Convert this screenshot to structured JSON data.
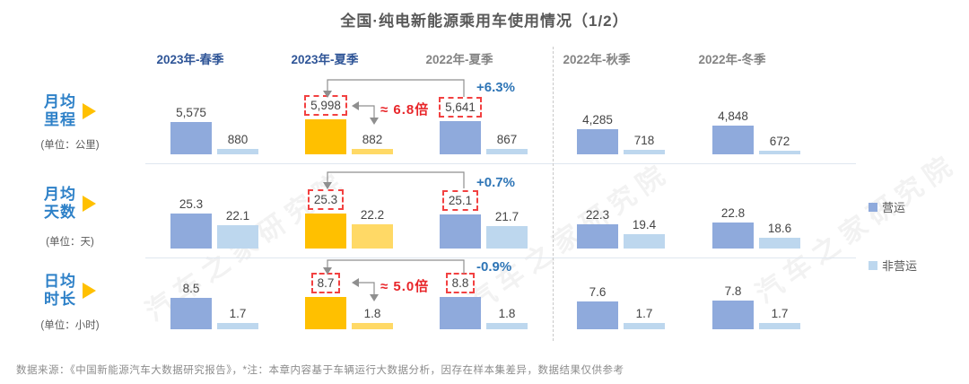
{
  "title": "全国·纯电新能源乘用车使用情况（1/2）",
  "watermark": "汽车之家研究院",
  "footer": "数据来源：《中国新能源汽车大数据研究报告》，*注：本章内容基于车辆运行大数据分析，因存在样本集差异，数据结果仅供参考",
  "colors": {
    "operating_bar": "#8FAADC",
    "non_operating_bar": "#BDD7EE",
    "highlight_operating_bar": "#FFC000",
    "highlight_non_operating_bar": "#FFD966",
    "accent_blue_text": "#2E75B6",
    "accent_red_text": "#E8262A",
    "header_active": "#2F5597",
    "header_inactive": "#848484",
    "row_label_blue": "#2E81C8",
    "triangle_yellow": "#FFC000"
  },
  "legend": [
    {
      "label": "营运",
      "color": "#8FAADC"
    },
    {
      "label": "非营运",
      "color": "#BDD7EE"
    }
  ],
  "chart_data": {
    "type": "bar",
    "categories": [
      "2023年-春季",
      "2023年-夏季",
      "2022年-夏季",
      "2022年-秋季",
      "2022年-冬季"
    ],
    "highlighted_categories": [
      "2023年-春季",
      "2023年-夏季"
    ],
    "highlight_bar_column": "2023年-夏季",
    "boxed_value_columns": [
      "2023年-夏季",
      "2022年-夏季"
    ],
    "legend_position": "right",
    "groups": [
      {
        "label": "月均里程",
        "label_lines": [
          "月均",
          "里程"
        ],
        "unit": "(单位：公里)",
        "series": [
          {
            "name": "营运",
            "values": [
              5575,
              5998,
              5641,
              4285,
              4848
            ],
            "display": [
              "5,575",
              "5,998",
              "5,641",
              "4,285",
              "4,848"
            ]
          },
          {
            "name": "非营运",
            "values": [
              880,
              882,
              867,
              718,
              672
            ],
            "display": [
              "880",
              "882",
              "867",
              "718",
              "672"
            ]
          }
        ],
        "annotations": {
          "yoy_pct": "+6.3%",
          "ratio": "≈ 6.8倍"
        }
      },
      {
        "label": "月均天数",
        "label_lines": [
          "月均",
          "天数"
        ],
        "unit": "(单位：天)",
        "series": [
          {
            "name": "营运",
            "values": [
              25.3,
              25.3,
              25.1,
              22.3,
              22.8
            ],
            "display": [
              "25.3",
              "25.3",
              "25.1",
              "22.3",
              "22.8"
            ]
          },
          {
            "name": "非营运",
            "values": [
              22.1,
              22.2,
              21.7,
              19.4,
              18.6
            ],
            "display": [
              "22.1",
              "22.2",
              "21.7",
              "19.4",
              "18.6"
            ]
          }
        ],
        "annotations": {
          "yoy_pct": "+0.7%"
        }
      },
      {
        "label": "日均时长",
        "label_lines": [
          "日均",
          "时长"
        ],
        "unit": "(单位：小时)",
        "series": [
          {
            "name": "营运",
            "values": [
              8.5,
              8.7,
              8.8,
              7.6,
              7.8
            ],
            "display": [
              "8.5",
              "8.7",
              "8.8",
              "7.6",
              "7.8"
            ]
          },
          {
            "name": "非营运",
            "values": [
              1.7,
              1.8,
              1.8,
              1.7,
              1.7
            ],
            "display": [
              "1.7",
              "1.8",
              "1.8",
              "1.7",
              "1.7"
            ]
          }
        ],
        "annotations": {
          "yoy_pct": "-0.9%",
          "ratio": "≈ 5.0倍"
        }
      }
    ]
  }
}
